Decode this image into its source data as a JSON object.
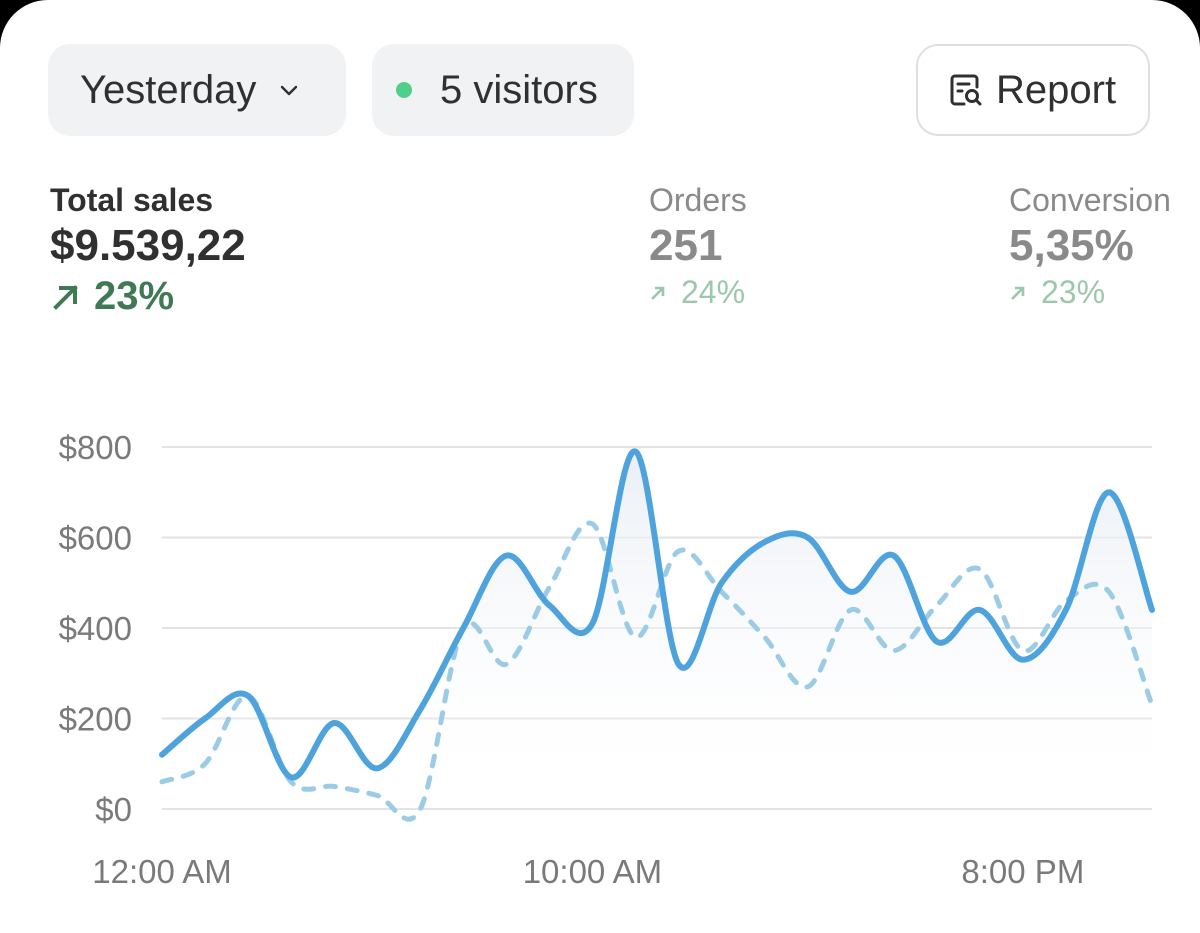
{
  "header": {
    "date_label": "Yesterday",
    "visitors_label": "5 visitors",
    "report_label": "Report"
  },
  "metrics": [
    {
      "label": "Total sales",
      "value": "$9.539,22",
      "delta": "23%"
    },
    {
      "label": "Orders",
      "value": "251",
      "delta": "24%"
    },
    {
      "label": "Conversion",
      "value": "5,35%",
      "delta": "23%"
    }
  ],
  "colors": {
    "line": "#4fa3dd",
    "comparison": "#9ccbe6",
    "grid": "#e3e3e3",
    "positive": "#3f7a55",
    "live_dot": "#4fd08a"
  },
  "chart_data": {
    "type": "line",
    "x": [
      "12:00 AM",
      "1:00 AM",
      "2:00 AM",
      "3:00 AM",
      "4:00 AM",
      "5:00 AM",
      "6:00 AM",
      "7:00 AM",
      "8:00 AM",
      "9:00 AM",
      "10:00 AM",
      "11:00 AM",
      "12:00 PM",
      "1:00 PM",
      "2:00 PM",
      "3:00 PM",
      "4:00 PM",
      "5:00 PM",
      "6:00 PM",
      "7:00 PM",
      "8:00 PM",
      "9:00 PM",
      "10:00 PM",
      "11:00 PM"
    ],
    "x_tick_labels": [
      "12:00 AM",
      "10:00 AM",
      "8:00 PM"
    ],
    "y_tick_labels": [
      "$0",
      "$200",
      "$400",
      "$600",
      "$800"
    ],
    "y_ticks": [
      0,
      200,
      400,
      600,
      800
    ],
    "ylim": [
      0,
      800
    ],
    "series": [
      {
        "style": "solid",
        "values": [
          120,
          200,
          250,
          70,
          190,
          90,
          220,
          400,
          560,
          450,
          410,
          790,
          320,
          500,
          590,
          600,
          480,
          560,
          370,
          440,
          330,
          440,
          700,
          440
        ]
      },
      {
        "style": "dashed",
        "values": [
          60,
          100,
          250,
          60,
          50,
          30,
          0,
          400,
          320,
          490,
          630,
          380,
          570,
          480,
          380,
          270,
          440,
          350,
          450,
          530,
          350,
          460,
          480,
          230
        ]
      }
    ],
    "grid": true
  }
}
